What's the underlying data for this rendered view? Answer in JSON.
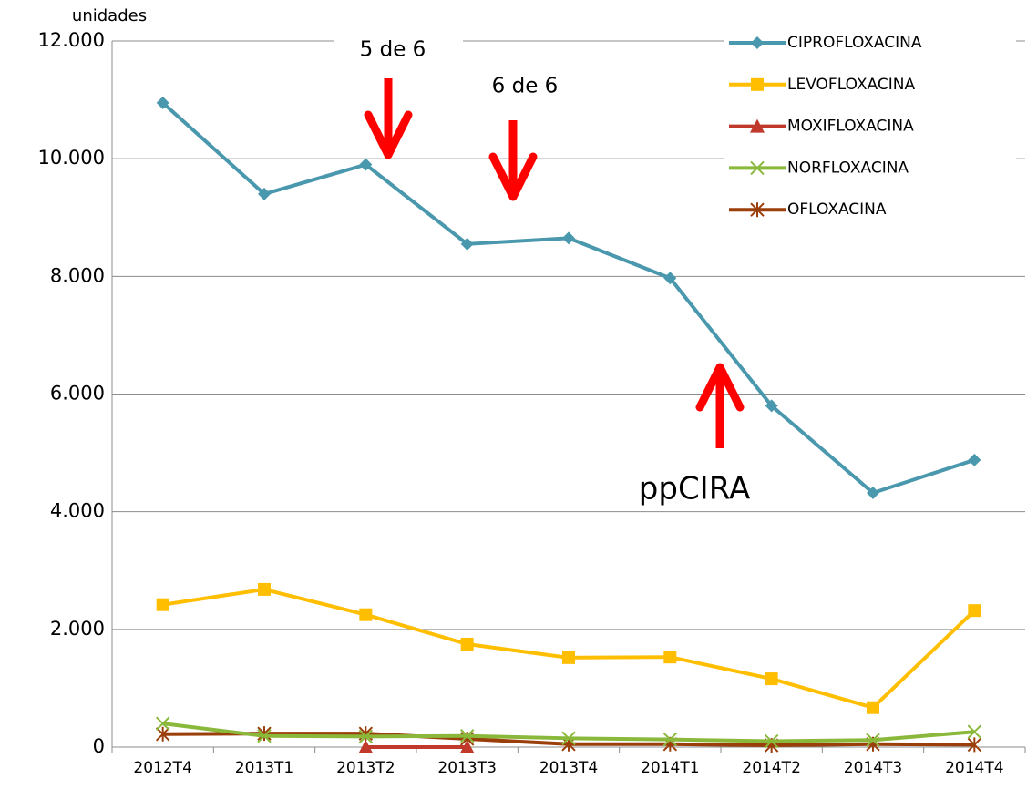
{
  "chart_data": {
    "type": "line",
    "y_label": "unidades",
    "categories": [
      "2012T4",
      "2013T1",
      "2013T2",
      "2013T3",
      "2013T4",
      "2014T1",
      "2014T2",
      "2014T3",
      "2014T4"
    ],
    "series": [
      {
        "name": "CIPROFLOXACINA",
        "color": "#4a98ad",
        "marker": "diamond",
        "values": [
          10950,
          9400,
          9900,
          8550,
          8650,
          7970,
          5800,
          4320,
          4880
        ]
      },
      {
        "name": "LEVOFLOXACINA",
        "color": "#ffbe00",
        "marker": "square",
        "values": [
          2420,
          2680,
          2250,
          1750,
          1520,
          1530,
          1160,
          670,
          2320
        ]
      },
      {
        "name": "MOXIFLOXACINA",
        "color": "#c0392b",
        "marker": "triangle",
        "values": [
          null,
          null,
          0,
          0,
          null,
          null,
          null,
          null,
          null
        ]
      },
      {
        "name": "NORFLOXACINA",
        "color": "#8ab83a",
        "marker": "x",
        "values": [
          400,
          190,
          180,
          190,
          150,
          130,
          100,
          120,
          260
        ]
      },
      {
        "name": "OFLOXACINA",
        "color": "#9b3f0a",
        "marker": "star",
        "values": [
          220,
          230,
          230,
          140,
          50,
          50,
          30,
          50,
          40
        ]
      }
    ],
    "ylim": [
      0,
      12000
    ],
    "yticks": [
      0,
      {
        "value": 2000,
        "label": "2.000"
      },
      {
        "value": 4000,
        "label": "4.000"
      },
      {
        "value": 6000,
        "label": "6.000"
      },
      {
        "value": 8000,
        "label": "8.000"
      },
      {
        "value": 10000,
        "label": "10.000"
      },
      {
        "value": 12000,
        "label": "12.000"
      }
    ],
    "grid": true,
    "legend": "top-right",
    "annotations": [
      "5 de 6",
      "6 de 6",
      "ppCIRA"
    ]
  }
}
